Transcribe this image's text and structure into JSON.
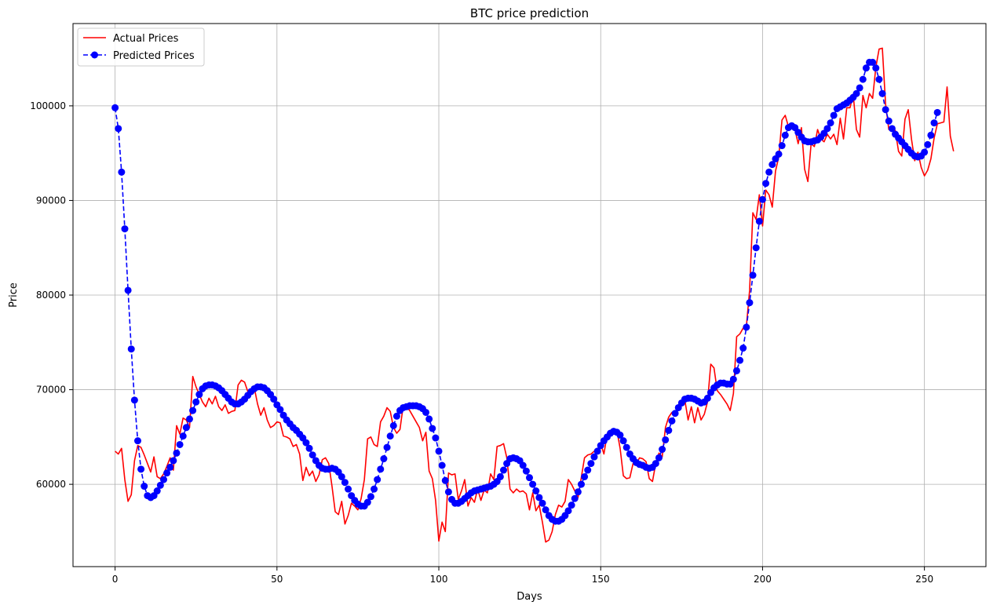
{
  "chart_data": {
    "type": "line",
    "title": "BTC price prediction",
    "xlabel": "Days",
    "ylabel": "Price",
    "xlim": [
      -13,
      269
    ],
    "ylim": [
      51300,
      108700
    ],
    "x_ticks": [
      0,
      50,
      100,
      150,
      200,
      250
    ],
    "y_ticks": [
      60000,
      70000,
      80000,
      90000,
      100000
    ],
    "grid": true,
    "legend_position": "top-left",
    "series": [
      {
        "name": "Actual Prices",
        "color": "#ff0000",
        "style": "solid",
        "marker": "none",
        "values": [
          63500,
          63200,
          63800,
          60500,
          58200,
          58900,
          62500,
          64100,
          63900,
          63100,
          62200,
          61300,
          62900,
          60800,
          60600,
          61100,
          61900,
          62800,
          61500,
          66200,
          65300,
          67000,
          66800,
          66000,
          71400,
          70300,
          69500,
          68700,
          68200,
          69100,
          68500,
          69300,
          68200,
          67800,
          68400,
          67500,
          67700,
          67800,
          70500,
          71000,
          70800,
          69800,
          69900,
          70200,
          68500,
          67300,
          68100,
          66800,
          66000,
          66200,
          66600,
          66500,
          65100,
          65000,
          64800,
          64000,
          64200,
          63200,
          60400,
          61800,
          60900,
          61400,
          60300,
          61000,
          62600,
          62800,
          62200,
          59800,
          57100,
          56800,
          58200,
          55800,
          56700,
          58000,
          57700,
          57300,
          58500,
          60500,
          64800,
          65000,
          64200,
          64000,
          66600,
          67200,
          68100,
          67700,
          66000,
          65400,
          65800,
          68300,
          68200,
          67800,
          67200,
          66600,
          66000,
          64600,
          65500,
          61400,
          60600,
          58300,
          54000,
          56000,
          55000,
          61200,
          61000,
          61100,
          58400,
          59300,
          60500,
          57700,
          58600,
          58100,
          59500,
          58300,
          59400,
          59100,
          61100,
          60500,
          64000,
          64100,
          64300,
          62800,
          59500,
          59100,
          59500,
          59200,
          59300,
          59000,
          57300,
          59100,
          57200,
          57800,
          56000,
          53900,
          54100,
          55000,
          56800,
          57800,
          57600,
          58200,
          60500,
          60000,
          59300,
          58600,
          60700,
          62800,
          63100,
          63200,
          63500,
          63200,
          64300,
          63200,
          65300,
          65700,
          65800,
          65700,
          63800,
          60900,
          60600,
          60700,
          62200,
          62200,
          62800,
          62700,
          62400,
          60600,
          60300,
          62200,
          63300,
          62900,
          66000,
          67100,
          67600,
          67300,
          68400,
          68300,
          68900,
          66800,
          68200,
          66500,
          68100,
          66800,
          67400,
          68700,
          72700,
          72300,
          69900,
          69500,
          69000,
          68500,
          67800,
          69600,
          75600,
          75900,
          76500,
          76700,
          80500,
          88700,
          88000,
          90600,
          87300,
          91100,
          90600,
          89300,
          93100,
          94600,
          98500,
          99000,
          97800,
          98000,
          97500,
          96000,
          97700,
          93300,
          92000,
          96000,
          95700,
          97500,
          96500,
          96200,
          97000,
          96500,
          97000,
          95900,
          98700,
          96500,
          99800,
          99800,
          101200,
          97500,
          96700,
          101100,
          99800,
          101300,
          100800,
          104100,
          106000,
          106100,
          100200,
          97500,
          97800,
          97400,
          95200,
          94700,
          98600,
          99600,
          96500,
          94200,
          95100,
          93500,
          92600,
          93200,
          94400,
          96600,
          98100,
          98200,
          98300,
          102000,
          96800,
          95200
        ]
      },
      {
        "name": "Predicted Prices",
        "color": "#0000ff",
        "style": "dashed",
        "marker": "circle",
        "values": [
          99800,
          97600,
          93000,
          87000,
          80500,
          74300,
          68900,
          64600,
          61600,
          59800,
          58800,
          58600,
          58800,
          59300,
          59900,
          60500,
          61200,
          61800,
          62500,
          63300,
          64200,
          65100,
          66000,
          66900,
          67800,
          68700,
          69500,
          70100,
          70400,
          70500,
          70500,
          70400,
          70200,
          69900,
          69500,
          69100,
          68700,
          68500,
          68500,
          68700,
          69000,
          69400,
          69800,
          70100,
          70300,
          70300,
          70200,
          69900,
          69500,
          69000,
          68400,
          67900,
          67300,
          66800,
          66400,
          66000,
          65700,
          65300,
          64900,
          64400,
          63800,
          63100,
          62500,
          62000,
          61700,
          61600,
          61600,
          61700,
          61600,
          61300,
          60800,
          60200,
          59500,
          58800,
          58300,
          57900,
          57700,
          57700,
          58100,
          58700,
          59500,
          60500,
          61600,
          62700,
          63900,
          65100,
          66200,
          67200,
          67800,
          68100,
          68200,
          68300,
          68300,
          68300,
          68200,
          68000,
          67600,
          66900,
          65900,
          64900,
          63500,
          62000,
          60400,
          59200,
          58400,
          58000,
          58000,
          58200,
          58500,
          58800,
          59100,
          59300,
          59400,
          59500,
          59600,
          59700,
          59800,
          60000,
          60300,
          60800,
          61500,
          62200,
          62700,
          62800,
          62700,
          62500,
          62000,
          61400,
          60700,
          60000,
          59300,
          58600,
          58000,
          57300,
          56700,
          56300,
          56100,
          56100,
          56300,
          56700,
          57200,
          57800,
          58500,
          59200,
          60000,
          60800,
          61500,
          62200,
          62900,
          63500,
          64100,
          64600,
          65000,
          65400,
          65600,
          65500,
          65200,
          64600,
          63900,
          63200,
          62700,
          62300,
          62100,
          62000,
          61800,
          61700,
          61800,
          62200,
          62800,
          63700,
          64700,
          65700,
          66700,
          67500,
          68100,
          68600,
          69000,
          69100,
          69100,
          69000,
          68800,
          68600,
          68700,
          69100,
          69700,
          70200,
          70500,
          70700,
          70700,
          70600,
          70600,
          71100,
          72000,
          73100,
          74400,
          76600,
          79200,
          82100,
          85000,
          87800,
          90100,
          91800,
          93000,
          93800,
          94400,
          94900,
          95800,
          96900,
          97700,
          97900,
          97700,
          97200,
          96700,
          96300,
          96200,
          96200,
          96300,
          96400,
          96700,
          97100,
          97600,
          98200,
          99000,
          99700,
          99900,
          100100,
          100300,
          100600,
          100900,
          101300,
          101900,
          102800,
          104000,
          104600,
          104600,
          104000,
          102800,
          101300,
          99600,
          98400,
          97600,
          97000,
          96600,
          96200,
          95800,
          95400,
          95000,
          94700,
          94600,
          94700,
          95100,
          95900,
          96900,
          98200,
          99300
        ]
      }
    ]
  }
}
